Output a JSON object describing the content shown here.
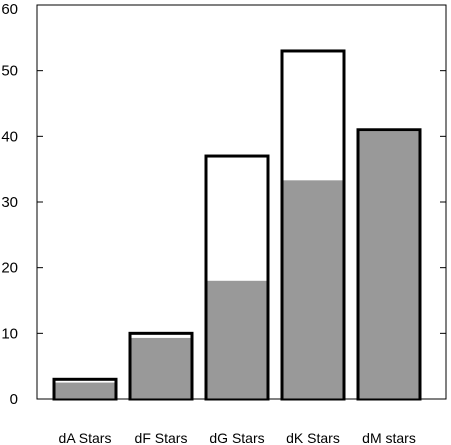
{
  "chart_data": {
    "type": "bar",
    "categories": [
      "dA Stars",
      "dF Stars",
      "dG Stars",
      "dK Stars",
      "dM stars"
    ],
    "series": [
      {
        "values": [
          3,
          10,
          37,
          53,
          41
        ]
      },
      {
        "values": [
          2.5,
          9.3,
          18,
          33.3,
          41
        ]
      }
    ],
    "ylim": [
      0,
      60
    ],
    "yticks": [
      0,
      10,
      20,
      30,
      40,
      50,
      60
    ],
    "ytick_labels": [
      "0",
      "10",
      "20",
      "30",
      "40",
      "50",
      "60"
    ],
    "grid": false,
    "colors": {
      "outline": "#000000",
      "filled": "#999999",
      "empty": "#ffffff"
    }
  }
}
